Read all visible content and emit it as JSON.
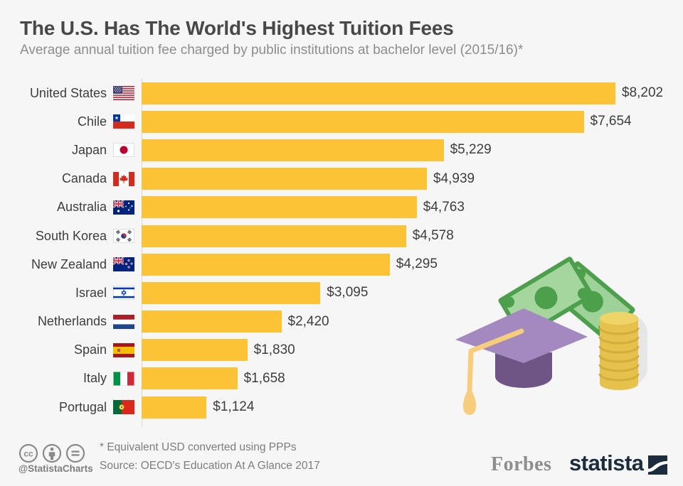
{
  "header": {
    "title": "The U.S. Has The World's Highest Tuition Fees",
    "subtitle": "Average annual tuition fee charged by public institutions at bachelor level (2015/16)*"
  },
  "chart_data": {
    "type": "bar",
    "orientation": "horizontal",
    "title": "The U.S. Has The World's Highest Tuition Fees",
    "categories": [
      "United States",
      "Chile",
      "Japan",
      "Canada",
      "Australia",
      "South Korea",
      "New Zealand",
      "Israel",
      "Netherlands",
      "Spain",
      "Italy",
      "Portugal"
    ],
    "values": [
      8202,
      7654,
      5229,
      4939,
      4763,
      4578,
      4295,
      3095,
      2420,
      1830,
      1658,
      1124
    ],
    "value_labels": [
      "$8,202",
      "$7,654",
      "$5,229",
      "$4,939",
      "$4,763",
      "$4,578",
      "$4,295",
      "$3,095",
      "$2,420",
      "$1,830",
      "$1,658",
      "$1,124"
    ],
    "flags": [
      "us",
      "cl",
      "jp",
      "ca",
      "au",
      "kr",
      "nz",
      "il",
      "nl",
      "es",
      "it",
      "pt"
    ],
    "xlim": [
      0,
      8202
    ],
    "unit": "USD (PPP)",
    "bar_color": "#FBC335",
    "grid": false,
    "legend": false
  },
  "footer": {
    "license_icons": [
      "cc-icon",
      "attribution-icon",
      "no-derivatives-icon"
    ],
    "handle": "@StatistaCharts",
    "footnote": "* Equivalent USD converted using PPPs",
    "source": "Source: OECD's Education At A Glance 2017"
  },
  "branding": {
    "partner": "Forbes",
    "brand": "statista",
    "brand_color": "#1B2C3E"
  },
  "illustration": {
    "elements": [
      "banknote-icon",
      "graduation-cap-icon",
      "coin-stack-icon"
    ]
  }
}
